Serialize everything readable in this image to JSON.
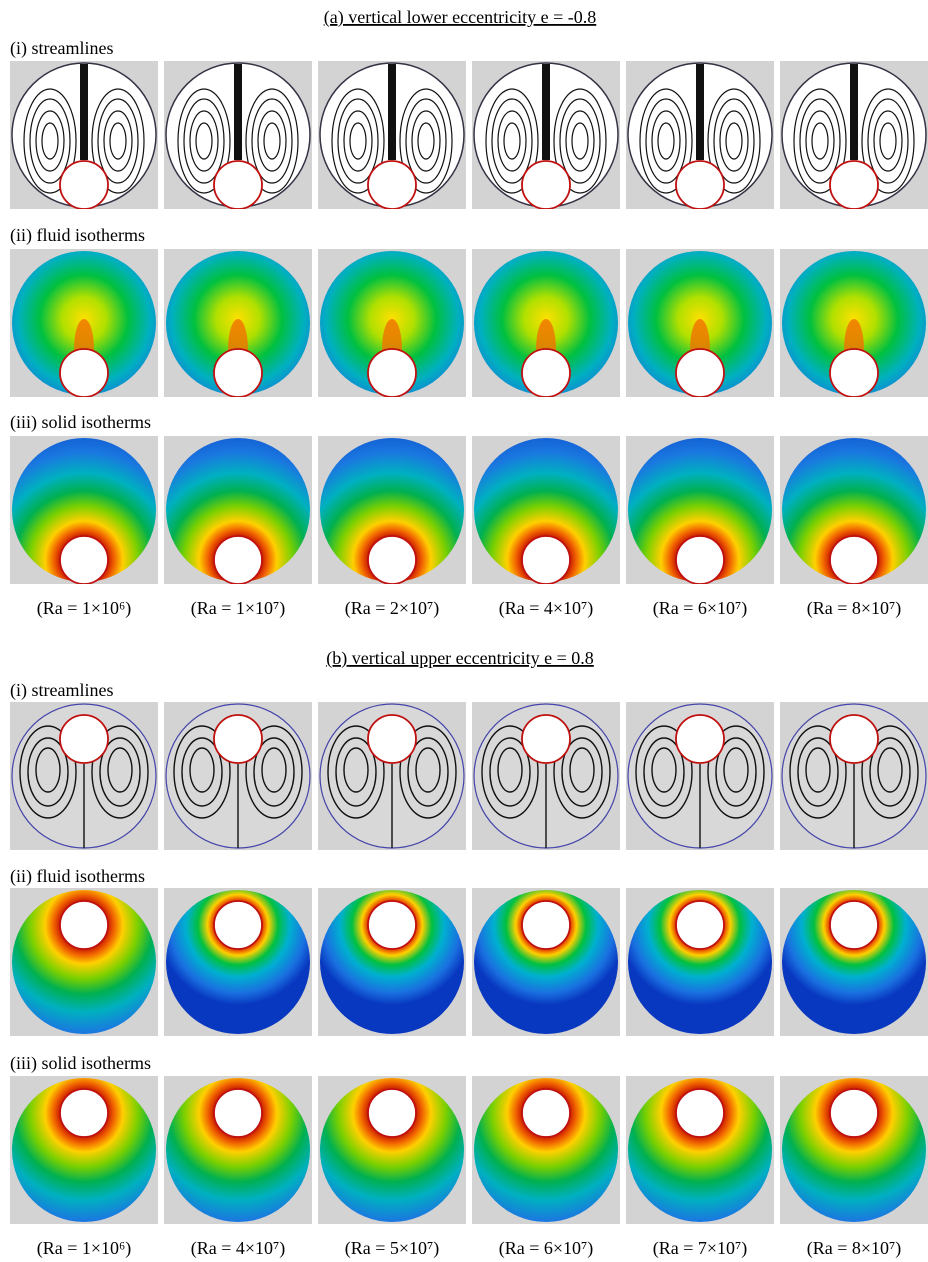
{
  "panels": [
    {
      "title": "(a) vertical lower eccentricity e = -0.8",
      "rows": [
        "(i) streamlines",
        "(ii) fluid isotherms",
        "(iii) solid isotherms"
      ],
      "captions": [
        "(Ra = 1×10⁶)",
        "(Ra = 1×10⁷)",
        "(Ra = 2×10⁷)",
        "(Ra = 4×10⁷)",
        "(Ra = 6×10⁷)",
        "(Ra = 8×10⁷)"
      ]
    },
    {
      "title": "(b) vertical upper eccentricity e = 0.8",
      "rows": [
        "(i) streamlines",
        "(ii) fluid isotherms",
        "(iii) solid isotherms"
      ],
      "captions": [
        "(Ra = 1×10⁶)",
        "(Ra = 4×10⁷)",
        "(Ra = 5×10⁷)",
        "(Ra = 6×10⁷)",
        "(Ra = 7×10⁷)",
        "(Ra = 8×10⁷)"
      ]
    }
  ]
}
